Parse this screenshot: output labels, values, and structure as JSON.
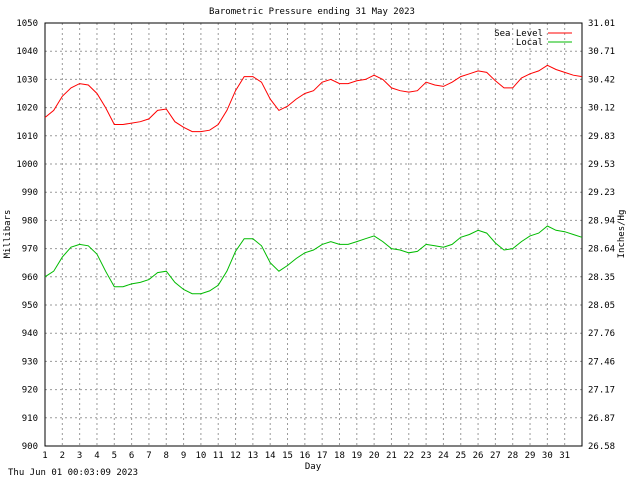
{
  "chart_data": {
    "type": "line",
    "title": "Barometric Pressure ending 31 May 2023",
    "xlabel": "Day",
    "ylabel": "Millibars",
    "y2label": "Inches/Hg",
    "xlim": [
      1,
      32
    ],
    "ylim": [
      900,
      1050
    ],
    "xticks": [
      "1",
      "2",
      "3",
      "4",
      "5",
      "6",
      "7",
      "8",
      "9",
      "10",
      "11",
      "12",
      "13",
      "14",
      "15",
      "16",
      "17",
      "18",
      "19",
      "20",
      "21",
      "22",
      "23",
      "24",
      "25",
      "26",
      "27",
      "28",
      "29",
      "30",
      "31"
    ],
    "yticks": [
      "1050",
      "1040",
      "1030",
      "1020",
      "1010",
      "1000",
      "990",
      "980",
      "970",
      "960",
      "950",
      "940",
      "930",
      "920",
      "910",
      "900"
    ],
    "y2ticks": [
      "31.01",
      "30.71",
      "30.42",
      "30.12",
      "29.83",
      "29.53",
      "29.23",
      "28.94",
      "28.64",
      "28.35",
      "28.05",
      "27.76",
      "27.46",
      "27.17",
      "26.87",
      "26.58"
    ],
    "grid": true,
    "legend_position": "top-right",
    "background": "#ffffff",
    "x": [
      1.0,
      1.5,
      2.0,
      2.5,
      3.0,
      3.5,
      4.0,
      4.5,
      5.0,
      5.5,
      6.0,
      6.5,
      7.0,
      7.5,
      8.0,
      8.5,
      9.0,
      9.5,
      10.0,
      10.5,
      11.0,
      11.5,
      12.0,
      12.5,
      13.0,
      13.5,
      14.0,
      14.5,
      15.0,
      15.5,
      16.0,
      16.5,
      17.0,
      17.5,
      18.0,
      18.5,
      19.0,
      19.5,
      20.0,
      20.5,
      21.0,
      21.5,
      22.0,
      22.5,
      23.0,
      23.5,
      24.0,
      24.5,
      25.0,
      25.5,
      26.0,
      26.5,
      27.0,
      27.5,
      28.0,
      28.5,
      29.0,
      29.5,
      30.0,
      30.5,
      31.0,
      31.5,
      32.0
    ],
    "series": [
      {
        "name": "Sea Level",
        "color": "#ff0000",
        "values": [
          1016.5,
          1019,
          1024,
          1027,
          1028.5,
          1028,
          1025,
          1020,
          1014,
          1014,
          1014.5,
          1015,
          1016,
          1019,
          1019.5,
          1015,
          1013,
          1011.5,
          1011.5,
          1012,
          1014,
          1019,
          1026,
          1031,
          1031,
          1029,
          1023,
          1019,
          1020.5,
          1023,
          1025,
          1026,
          1029,
          1030,
          1028.5,
          1028.5,
          1029.5,
          1030,
          1031.5,
          1030,
          1027,
          1026,
          1025.5,
          1026,
          1029,
          1028,
          1027.5,
          1029,
          1031,
          1032,
          1033,
          1032.5,
          1029.5,
          1027,
          1027,
          1030.5,
          1032,
          1033,
          1035,
          1033.5,
          1032.5,
          1031.5,
          1031
        ]
      },
      {
        "name": "Local",
        "color": "#00bb00",
        "values": [
          960,
          962,
          967,
          970.5,
          971.5,
          971,
          968,
          962,
          956.5,
          956.5,
          957.5,
          958,
          959,
          961.5,
          962,
          958,
          955.5,
          954,
          954,
          955,
          957,
          962,
          969,
          973.5,
          973.5,
          971,
          965,
          962,
          964,
          966.5,
          968.5,
          969.5,
          971.5,
          972.5,
          971.5,
          971.5,
          972.5,
          973.5,
          974.5,
          972.5,
          970,
          969.5,
          968.5,
          969,
          971.5,
          971,
          970.5,
          971.5,
          974,
          975,
          976.5,
          975.5,
          972,
          969.5,
          970,
          972.5,
          974.5,
          975.5,
          978,
          976.5,
          976,
          975,
          974
        ]
      }
    ]
  },
  "footer": {
    "timestamp": "Thu Jun 01 00:03:09 2023"
  }
}
